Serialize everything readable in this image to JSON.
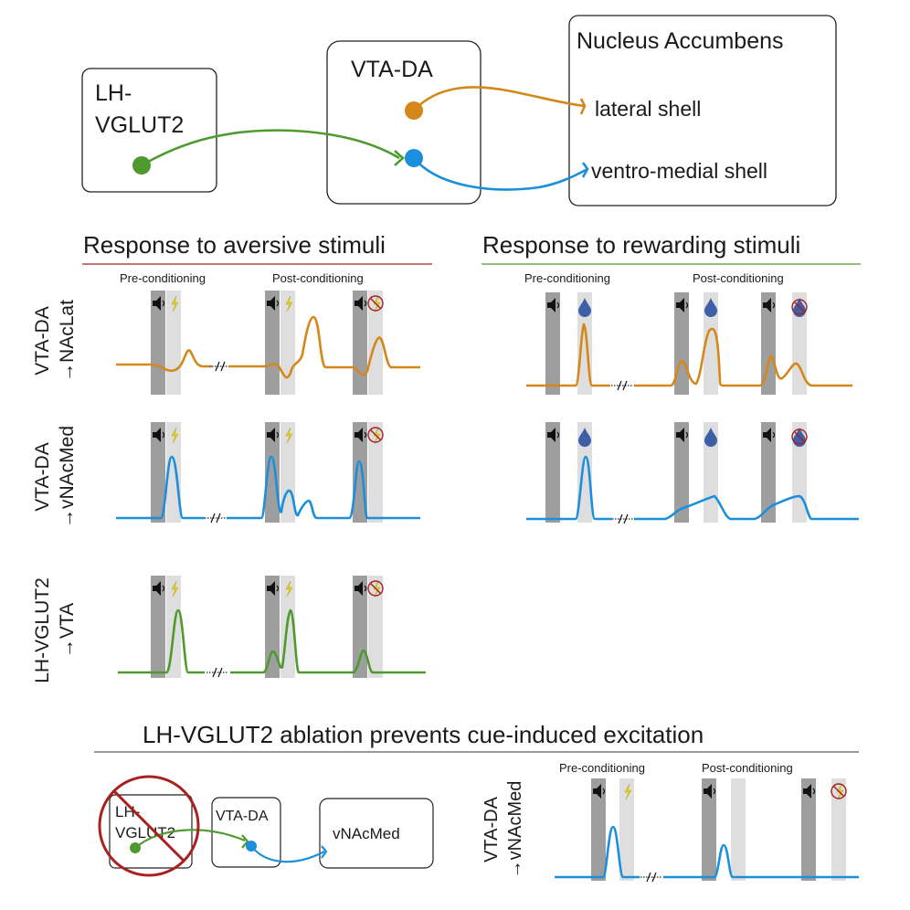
{
  "colors": {
    "orange": "#D4881C",
    "blue": "#1B8FDB",
    "green": "#4E9A2E",
    "red": "#A82020",
    "cue_gray": "#9E9E9E",
    "us_gray": "#DEDEDE",
    "drop": "#3C5FA8",
    "bolt": "#E8D21E"
  },
  "icons": [
    "speaker-icon",
    "lightning-bolt-icon",
    "water-drop-icon",
    "prohibited-icon"
  ],
  "circuit": {
    "lh_label": "LH-\nVGLUT2",
    "vta_label": "VTA-DA",
    "nac_label": "Nucleus Accumbens",
    "lateral_shell": "lateral shell",
    "ventro_medial_shell": "ventro-medial shell"
  },
  "aversive": {
    "title": "Response to aversive stimuli",
    "pre": "Pre-conditioning",
    "post": "Post-conditioning"
  },
  "rewarding": {
    "title": "Response to rewarding stimuli",
    "pre": "Pre-conditioning",
    "post": "Post-conditioning"
  },
  "rows": {
    "nac_lat": {
      "line1": "VTA-DA",
      "line2": "→NAcLat"
    },
    "vnacmed": {
      "line1": "VTA-DA",
      "line2": "→vNAcMed"
    },
    "lh_vta": {
      "line1": "LH-VGLUT2",
      "line2": "→VTA"
    }
  },
  "ablation": {
    "title": "LH-VGLUT2 ablation prevents cue-induced excitation",
    "lh_label": "LH-\nVGLUT2",
    "vta_label": "VTA-DA",
    "vnacmed_label": "vNAcMed",
    "row_line1": "VTA-DA",
    "row_line2": "→vNAcMed",
    "pre": "Pre-conditioning",
    "post": "Post-conditioning"
  }
}
